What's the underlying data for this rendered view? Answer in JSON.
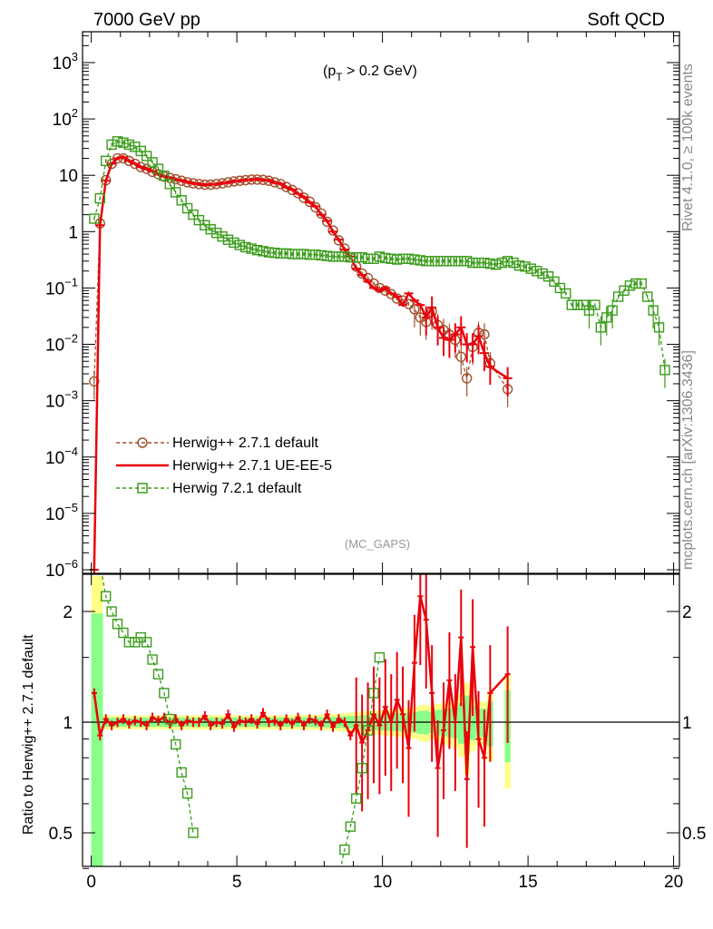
{
  "header": {
    "left": "7000 GeV pp",
    "right": "Soft QCD",
    "annotation": "(p_T > 0.2 GeV)",
    "annotation_main": "(p",
    "annotation_sub": "T",
    "annotation_rest": " > 0.2 GeV)",
    "watermark": "(MC_GAPS)",
    "side_top": "Rivet 4.1.0, ≥ 100k events",
    "side_bottom": "mcplots.cern.ch [arXiv:1306.3436]"
  },
  "colors": {
    "herwigpp_default": "#a0522d",
    "herwigpp_ueee5": "#e8000b",
    "herwig7": "#3a9c1a",
    "band_yellow": "#ffff88",
    "band_green": "#88ff88"
  },
  "chart_data": [
    {
      "type": "scatter",
      "title": "",
      "yscale": "log",
      "xlim": [
        -0.3,
        20.2
      ],
      "ylim": [
        1e-06,
        3000
      ],
      "xlabel": "",
      "ylabel": "",
      "yticks": [
        "10^-6",
        "10^-5",
        "10^-4",
        "10^-3",
        "10^-2",
        "10^-1",
        "1",
        "10",
        "10^2",
        "10^3"
      ],
      "legend": [
        {
          "name": "Herwig++ 2.7.1 default",
          "key": "herwigpp_default"
        },
        {
          "name": "Herwig++ 2.7.1 UE-EE-5",
          "key": "herwigpp_ueee5"
        },
        {
          "name": "Herwig 7.2.1 default",
          "key": "herwig7"
        }
      ],
      "series": [
        {
          "name": "Herwig++ 2.7.1 default",
          "key": "herwigpp_default",
          "x": [
            0.1,
            0.3,
            0.5,
            0.7,
            0.9,
            1.1,
            1.3,
            1.5,
            1.7,
            1.9,
            2.1,
            2.3,
            2.5,
            2.7,
            2.9,
            3.1,
            3.3,
            3.5,
            3.7,
            3.9,
            4.1,
            4.3,
            4.5,
            4.7,
            4.9,
            5.1,
            5.3,
            5.5,
            5.7,
            5.9,
            6.1,
            6.3,
            6.5,
            6.7,
            6.9,
            7.1,
            7.3,
            7.5,
            7.7,
            7.9,
            8.1,
            8.3,
            8.5,
            8.7,
            8.9,
            9.1,
            9.3,
            9.5,
            9.7,
            9.9,
            10.1,
            10.3,
            10.5,
            10.7,
            10.9,
            11.1,
            11.3,
            11.5,
            11.7,
            11.9,
            12.1,
            12.3,
            12.5,
            12.7,
            12.9,
            13.1,
            13.3,
            13.5,
            13.7,
            14.3
          ],
          "y": [
            0.0022,
            1.4,
            8.2,
            16,
            20,
            20,
            18,
            16,
            14,
            13,
            11.5,
            10.5,
            9.5,
            9,
            8.5,
            8,
            7.5,
            7.2,
            7.0,
            6.8,
            6.8,
            7.0,
            7.2,
            7.5,
            7.8,
            8.0,
            8.2,
            8.4,
            8.4,
            8.3,
            8.0,
            7.5,
            7.0,
            6.2,
            5.5,
            4.8,
            4.0,
            3.4,
            2.7,
            2.1,
            1.5,
            1.05,
            0.7,
            0.5,
            0.35,
            0.24,
            0.18,
            0.15,
            0.12,
            0.1,
            0.09,
            0.078,
            0.065,
            0.06,
            0.052,
            0.042,
            0.03,
            0.025,
            0.038,
            0.022,
            0.018,
            0.0148,
            0.012,
            0.006,
            0.0025,
            0.009,
            0.016,
            0.015,
            0.0046,
            0.0016
          ]
        },
        {
          "name": "Herwig++ 2.7.1 UE-EE-5",
          "key": "herwigpp_ueee5",
          "x": [
            0.1,
            0.3,
            0.5,
            0.7,
            0.9,
            1.1,
            1.3,
            1.5,
            1.7,
            1.9,
            2.1,
            2.3,
            2.5,
            2.7,
            2.9,
            3.1,
            3.3,
            3.5,
            3.7,
            3.9,
            4.1,
            4.3,
            4.5,
            4.7,
            4.9,
            5.1,
            5.3,
            5.5,
            5.7,
            5.9,
            6.1,
            6.3,
            6.5,
            6.7,
            6.9,
            7.1,
            7.3,
            7.5,
            7.7,
            7.9,
            8.1,
            8.3,
            8.5,
            8.7,
            8.9,
            9.1,
            9.3,
            9.5,
            9.7,
            9.9,
            10.1,
            10.3,
            10.5,
            10.7,
            10.9,
            11.1,
            11.3,
            11.5,
            11.7,
            11.9,
            12.1,
            12.3,
            12.5,
            12.7,
            12.9,
            13.1,
            13.3,
            13.5,
            13.7,
            14.3
          ],
          "y": [
            1e-06,
            1.3,
            8.0,
            16,
            20,
            21,
            18,
            16,
            14,
            13,
            11.8,
            10.5,
            9.6,
            9,
            8.4,
            8.1,
            7.6,
            7.2,
            7.0,
            6.7,
            6.9,
            6.9,
            7.3,
            7.4,
            7.9,
            7.9,
            8.3,
            8.3,
            8.6,
            8.2,
            8.2,
            7.4,
            7.1,
            6.1,
            5.6,
            4.7,
            4.1,
            3.3,
            2.8,
            2.0,
            1.55,
            1.0,
            0.72,
            0.48,
            0.36,
            0.22,
            0.17,
            0.13,
            0.1,
            0.09,
            0.1,
            0.08,
            0.07,
            0.05,
            0.08,
            0.06,
            0.05,
            0.03,
            0.045,
            0.02,
            0.013,
            0.012,
            0.015,
            0.02,
            0.01,
            0.01,
            0.014,
            0.007,
            0.004,
            0.0025
          ]
        },
        {
          "name": "Herwig 7.2.1 default",
          "key": "herwig7",
          "x": [
            0.1,
            0.3,
            0.5,
            0.7,
            0.9,
            1.1,
            1.3,
            1.5,
            1.7,
            1.9,
            2.1,
            2.3,
            2.5,
            2.7,
            2.9,
            3.1,
            3.3,
            3.5,
            3.7,
            3.9,
            4.1,
            4.3,
            4.5,
            4.7,
            4.9,
            5.1,
            5.3,
            5.5,
            5.7,
            5.9,
            6.1,
            6.3,
            6.5,
            6.7,
            6.9,
            7.1,
            7.3,
            7.5,
            7.7,
            7.9,
            8.1,
            8.3,
            8.5,
            8.7,
            8.9,
            9.1,
            9.3,
            9.5,
            9.7,
            9.9,
            10.1,
            10.3,
            10.5,
            10.7,
            10.9,
            11.1,
            11.3,
            11.5,
            11.7,
            11.9,
            12.1,
            12.3,
            12.5,
            12.7,
            12.9,
            13.1,
            13.3,
            13.5,
            13.7,
            13.9,
            14.1,
            14.3,
            14.5,
            14.7,
            14.9,
            15.1,
            15.3,
            15.5,
            15.7,
            15.9,
            16.1,
            16.3,
            16.5,
            16.7,
            16.9,
            17.1,
            17.3,
            17.5,
            17.7,
            17.9,
            18.1,
            18.3,
            18.5,
            18.7,
            18.9,
            19.1,
            19.3,
            19.5,
            19.7
          ],
          "y": [
            1.7,
            3.9,
            18,
            35,
            40,
            38,
            35,
            32,
            27,
            22,
            17,
            13,
            9.8,
            7.0,
            5.0,
            3.6,
            2.6,
            2.0,
            1.6,
            1.3,
            1.1,
            0.95,
            0.82,
            0.72,
            0.64,
            0.58,
            0.53,
            0.5,
            0.47,
            0.45,
            0.43,
            0.42,
            0.41,
            0.41,
            0.4,
            0.4,
            0.4,
            0.39,
            0.39,
            0.38,
            0.37,
            0.36,
            0.36,
            0.36,
            0.35,
            0.35,
            0.35,
            0.33,
            0.33,
            0.36,
            0.34,
            0.33,
            0.32,
            0.33,
            0.33,
            0.32,
            0.31,
            0.3,
            0.3,
            0.3,
            0.3,
            0.3,
            0.3,
            0.3,
            0.3,
            0.28,
            0.28,
            0.28,
            0.27,
            0.26,
            0.28,
            0.3,
            0.28,
            0.25,
            0.24,
            0.22,
            0.2,
            0.18,
            0.16,
            0.13,
            0.1,
            0.08,
            0.05,
            0.05,
            0.05,
            0.04,
            0.05,
            0.02,
            0.03,
            0.04,
            0.07,
            0.09,
            0.11,
            0.12,
            0.12,
            0.07,
            0.04,
            0.02,
            0.0035
          ]
        }
      ]
    },
    {
      "type": "line",
      "title": "",
      "ylabel": "Ratio to Herwig++ 2.7.1 default",
      "yscale": "log",
      "xlim": [
        -0.3,
        20.2
      ],
      "ylim": [
        0.35,
        2.5
      ],
      "xticks": [
        "0",
        "5",
        "10",
        "15",
        "20"
      ],
      "yticks": [
        "0.5",
        "1",
        "2"
      ],
      "reference_line": 1,
      "series": [
        {
          "name": "Herwig++ 2.7.1 UE-EE-5 / default",
          "key": "herwigpp_ueee5",
          "x": [
            0.1,
            0.3,
            0.5,
            0.7,
            0.9,
            1.1,
            1.3,
            1.5,
            1.7,
            1.9,
            2.1,
            2.3,
            2.5,
            2.7,
            2.9,
            3.1,
            3.3,
            3.5,
            3.7,
            3.9,
            4.1,
            4.3,
            4.5,
            4.7,
            4.9,
            5.1,
            5.3,
            5.5,
            5.7,
            5.9,
            6.1,
            6.3,
            6.5,
            6.7,
            6.9,
            7.1,
            7.3,
            7.5,
            7.7,
            7.9,
            8.1,
            8.3,
            8.5,
            8.7,
            8.9,
            9.1,
            9.3,
            9.5,
            9.7,
            9.9,
            10.1,
            10.3,
            10.5,
            10.7,
            10.9,
            11.1,
            11.3,
            11.5,
            11.7,
            11.9,
            12.1,
            12.3,
            12.5,
            12.7,
            12.9,
            13.1,
            13.3,
            13.5,
            13.7,
            14.3
          ],
          "y": [
            1.2,
            0.92,
            1.02,
            0.98,
            1.0,
            1.02,
            0.99,
            1.01,
            1.0,
            0.98,
            1.03,
            1.01,
            1.03,
            0.99,
            1.02,
            0.98,
            1.01,
            1.0,
            1.0,
            1.04,
            0.98,
            1.0,
            0.99,
            1.05,
            0.97,
            1.01,
            1.0,
            1.02,
            0.99,
            1.06,
            1.0,
            1.01,
            0.98,
            1.02,
            0.99,
            1.03,
            0.98,
            1.02,
            1.01,
            0.98,
            1.05,
            0.97,
            1.02,
            1.0,
            0.92,
            0.98,
            0.88,
            0.95,
            1.05,
            0.98,
            1.1,
            1.0,
            1.15,
            1.05,
            0.85,
            1.45,
            2.2,
            1.9,
            1.2,
            0.75,
            0.95,
            1.3,
            1.0,
            1.7,
            0.7,
            1.6,
            0.9,
            0.8,
            1.2,
            1.35
          ]
        },
        {
          "name": "Herwig 7.2.1 default / Herwig++ default",
          "key": "herwig7",
          "x": [
            0.3,
            0.5,
            0.7,
            0.9,
            1.1,
            1.3,
            1.5,
            1.7,
            1.9,
            2.1,
            2.3,
            2.5,
            2.7,
            2.9,
            3.1,
            3.3,
            3.5,
            8.5,
            8.7,
            8.9,
            9.1,
            9.3,
            9.5,
            9.7,
            9.9
          ],
          "y": [
            2.7,
            2.2,
            2.0,
            1.85,
            1.75,
            1.65,
            1.65,
            1.7,
            1.65,
            1.48,
            1.35,
            1.2,
            1.02,
            0.87,
            0.73,
            0.64,
            0.5,
            0.38,
            0.45,
            0.52,
            0.62,
            0.75,
            0.95,
            1.2,
            1.5
          ]
        }
      ]
    }
  ]
}
